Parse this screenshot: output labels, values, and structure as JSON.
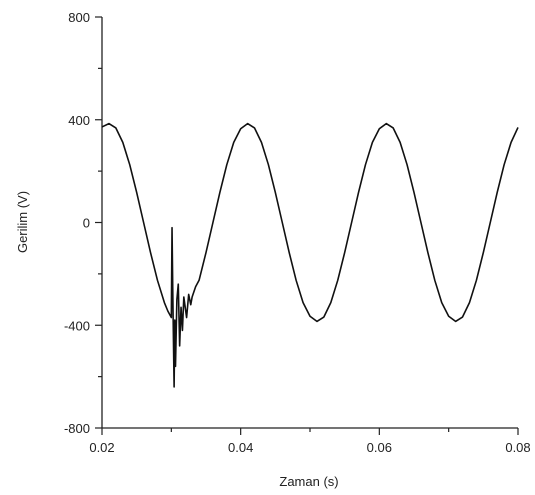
{
  "chart_data": {
    "type": "line",
    "xlabel": "Zaman (s)",
    "ylabel": "Gerilim (V)",
    "xlim": [
      0.02,
      0.08
    ],
    "ylim": [
      -800,
      800
    ],
    "x_ticks": [
      0.02,
      0.04,
      0.06,
      0.08
    ],
    "x_tick_labels": [
      "0.02",
      "0.04",
      "0.06",
      "0.08"
    ],
    "y_ticks": [
      -800,
      -400,
      0,
      400,
      800
    ],
    "y_tick_labels": [
      "-800",
      "-400",
      "0",
      "400",
      "800"
    ],
    "grid": false,
    "legend": "none",
    "line_color": "#111111",
    "series": [
      {
        "x": [
          0.02,
          0.021,
          0.022,
          0.023,
          0.024,
          0.025,
          0.026,
          0.027,
          0.028,
          0.029,
          0.0295,
          0.03,
          0.0301,
          0.0302,
          0.0303,
          0.0304,
          0.0305,
          0.0306,
          0.0308,
          0.031,
          0.0312,
          0.0314,
          0.0316,
          0.0318,
          0.032,
          0.0322,
          0.0325,
          0.0328,
          0.033,
          0.0335,
          0.034,
          0.035,
          0.036,
          0.037,
          0.038,
          0.039,
          0.04,
          0.041,
          0.042,
          0.043,
          0.044,
          0.045,
          0.046,
          0.047,
          0.048,
          0.049,
          0.05,
          0.051,
          0.052,
          0.053,
          0.054,
          0.055,
          0.056,
          0.057,
          0.058,
          0.059,
          0.06,
          0.061,
          0.062,
          0.063,
          0.064,
          0.065,
          0.066,
          0.067,
          0.068,
          0.069,
          0.07,
          0.071,
          0.072,
          0.073,
          0.074,
          0.075,
          0.076,
          0.077,
          0.078,
          0.079,
          0.08
        ],
        "y": [
          372,
          385,
          368,
          312,
          225,
          117,
          0,
          -117,
          -225,
          -312,
          -345,
          -370,
          -20,
          -250,
          -450,
          -640,
          -380,
          -560,
          -300,
          -240,
          -480,
          -330,
          -420,
          -290,
          -330,
          -370,
          -280,
          -320,
          -290,
          -250,
          -225,
          -117,
          0,
          117,
          225,
          312,
          365,
          385,
          368,
          312,
          225,
          117,
          0,
          -117,
          -225,
          -312,
          -365,
          -385,
          -368,
          -312,
          -225,
          -117,
          0,
          117,
          225,
          312,
          365,
          385,
          368,
          312,
          225,
          117,
          0,
          -117,
          -225,
          -312,
          -365,
          -385,
          -368,
          -312,
          -225,
          -117,
          0,
          117,
          225,
          312,
          370
        ]
      }
    ]
  }
}
